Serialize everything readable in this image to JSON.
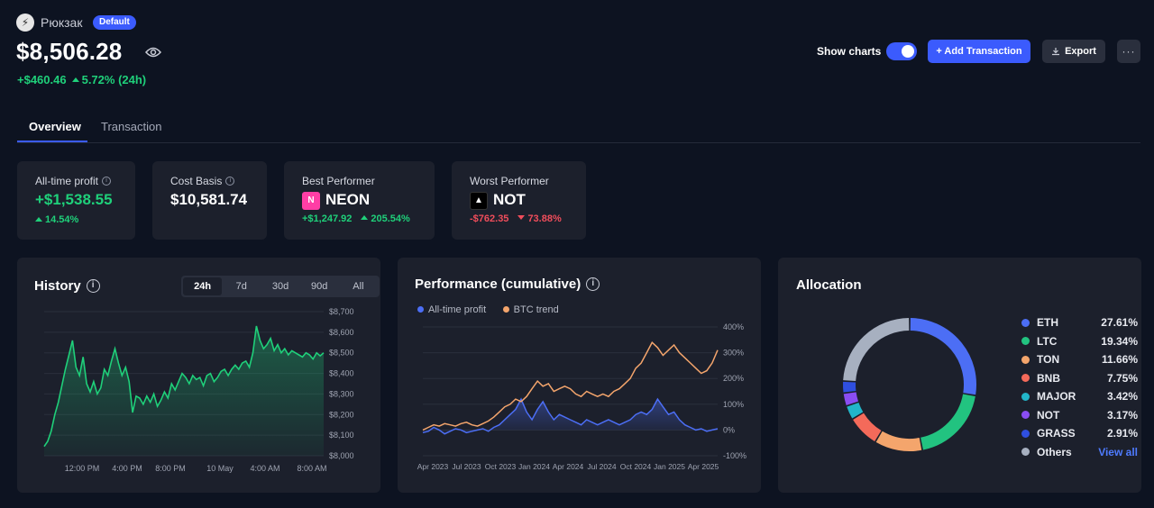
{
  "header": {
    "wallet_name": "Рюкзак",
    "badge": "Default",
    "total_value": "$8,506.28",
    "change_abs": "+$460.46",
    "change_pct": "5.72% (24h)",
    "show_charts_label": "Show charts",
    "show_charts_enabled": true,
    "add_transaction_label": "+ Add Transaction",
    "export_label": "Export",
    "more_label": "···",
    "accent_color": "#3b5bfd"
  },
  "tabs": [
    {
      "label": "Overview",
      "active": true
    },
    {
      "label": "Transaction",
      "active": false
    }
  ],
  "stats": {
    "all_time": {
      "title": "All-time profit",
      "value": "+$1,538.55",
      "sub_pct": "14.54%"
    },
    "cost_basis": {
      "title": "Cost Basis",
      "value": "$10,581.74"
    },
    "best": {
      "title": "Best Performer",
      "coin": "NEON",
      "sub_abs": "+$1,247.92",
      "sub_pct": "205.54%"
    },
    "worst": {
      "title": "Worst Performer",
      "coin": "NOT",
      "sub_abs": "-$762.35",
      "sub_pct": "73.88%"
    }
  },
  "history": {
    "title": "History",
    "ranges": [
      "24h",
      "7d",
      "30d",
      "90d",
      "All"
    ],
    "active_range": "24h"
  },
  "performance": {
    "title": "Performance (cumulative)",
    "legend": [
      "All-time profit",
      "BTC trend"
    ]
  },
  "allocation": {
    "title": "Allocation",
    "view_all": "View all",
    "items": [
      {
        "name": "ETH",
        "pct": "27.61%",
        "value": 27.61,
        "color": "#4c6ef5"
      },
      {
        "name": "LTC",
        "pct": "19.34%",
        "value": 19.34,
        "color": "#22c380"
      },
      {
        "name": "TON",
        "pct": "11.66%",
        "value": 11.66,
        "color": "#f4a56c"
      },
      {
        "name": "BNB",
        "pct": "7.75%",
        "value": 7.75,
        "color": "#f46a5a"
      },
      {
        "name": "MAJOR",
        "pct": "3.42%",
        "value": 3.42,
        "color": "#22b5c9"
      },
      {
        "name": "NOT",
        "pct": "3.17%",
        "value": 3.17,
        "color": "#8a4df2"
      },
      {
        "name": "GRASS",
        "pct": "2.91%",
        "value": 2.91,
        "color": "#2f4fe0"
      },
      {
        "name": "Others",
        "pct": "",
        "value": 24.14,
        "color": "#a7b0c0"
      }
    ]
  },
  "chart_data": [
    {
      "type": "area",
      "title": "History",
      "x_ticks": [
        "12:00 PM",
        "4:00 PM",
        "8:00 PM",
        "10 May",
        "4:00 AM",
        "8:00 AM"
      ],
      "y_ticks": [
        "$8,700",
        "$8,600",
        "$8,500",
        "$8,400",
        "$8,300",
        "$8,200",
        "$8,100",
        "$8,000"
      ],
      "ylim": [
        8000,
        8700
      ],
      "color": "#1fd07a",
      "values": [
        8045,
        8070,
        8120,
        8200,
        8260,
        8340,
        8420,
        8490,
        8560,
        8430,
        8390,
        8480,
        8350,
        8310,
        8360,
        8300,
        8330,
        8420,
        8390,
        8460,
        8520,
        8450,
        8390,
        8430,
        8360,
        8210,
        8290,
        8280,
        8250,
        8290,
        8260,
        8300,
        8240,
        8270,
        8310,
        8280,
        8350,
        8320,
        8360,
        8400,
        8380,
        8350,
        8390,
        8370,
        8380,
        8340,
        8390,
        8400,
        8360,
        8380,
        8410,
        8420,
        8390,
        8420,
        8440,
        8420,
        8450,
        8460,
        8430,
        8500,
        8630,
        8560,
        8520,
        8540,
        8570,
        8510,
        8540,
        8500,
        8520,
        8490,
        8510,
        8500,
        8490,
        8480,
        8500,
        8490,
        8470,
        8500,
        8485,
        8500
      ]
    },
    {
      "type": "line",
      "title": "Performance (cumulative)",
      "x_ticks": [
        "Apr 2023",
        "Jul 2023",
        "Oct 2023",
        "Jan 2024",
        "Apr 2024",
        "Jul 2024",
        "Oct 2024",
        "Jan 2025",
        "Apr 2025"
      ],
      "y_ticks": [
        "400%",
        "300%",
        "200%",
        "100%",
        "0%",
        "-100%"
      ],
      "ylim": [
        -100,
        400
      ],
      "series": [
        {
          "name": "All-time profit",
          "color": "#4c6ef5",
          "values": [
            -10,
            -5,
            10,
            0,
            -15,
            -5,
            5,
            0,
            -10,
            -5,
            0,
            5,
            -5,
            10,
            20,
            40,
            60,
            80,
            120,
            70,
            40,
            80,
            110,
            70,
            40,
            60,
            50,
            40,
            30,
            20,
            40,
            30,
            20,
            30,
            40,
            30,
            20,
            30,
            40,
            60,
            70,
            60,
            80,
            120,
            90,
            60,
            70,
            40,
            20,
            10,
            0,
            5,
            -5,
            0,
            5
          ]
        },
        {
          "name": "BTC trend",
          "color": "#f4a56c",
          "values": [
            0,
            10,
            20,
            15,
            25,
            20,
            15,
            25,
            30,
            20,
            15,
            25,
            35,
            50,
            70,
            90,
            100,
            120,
            110,
            130,
            160,
            190,
            170,
            180,
            150,
            160,
            170,
            160,
            140,
            130,
            150,
            140,
            130,
            140,
            130,
            150,
            160,
            180,
            200,
            240,
            260,
            300,
            340,
            320,
            290,
            310,
            330,
            300,
            280,
            260,
            240,
            220,
            230,
            260,
            310
          ]
        }
      ]
    },
    {
      "type": "pie",
      "title": "Allocation",
      "categories": [
        "ETH",
        "LTC",
        "TON",
        "BNB",
        "MAJOR",
        "NOT",
        "GRASS",
        "Others"
      ],
      "values": [
        27.61,
        19.34,
        11.66,
        7.75,
        3.42,
        3.17,
        2.91,
        24.14
      ]
    }
  ]
}
